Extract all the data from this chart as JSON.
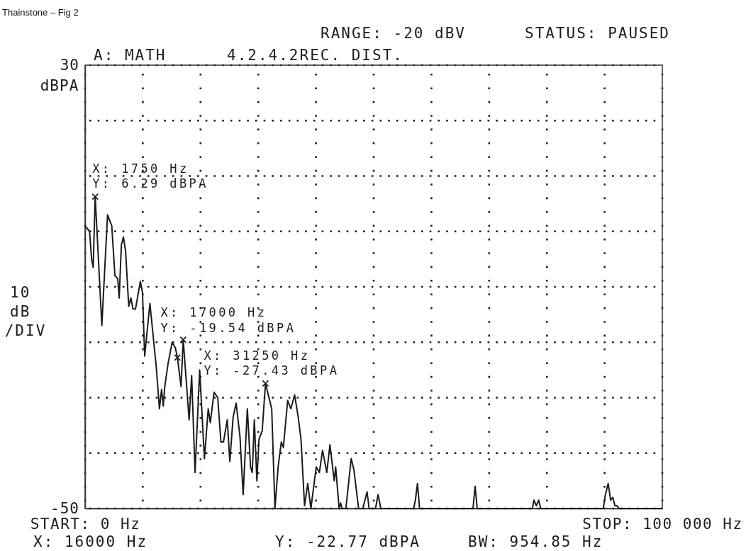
{
  "chart_data": {
    "type": "line",
    "title": "Thainstone – Fig 2",
    "ylabel": "dBPA",
    "annotations": [
      "RANGE: -20 dBV",
      "STATUS: PAUSED",
      "A: MATH",
      "4.2.4.2REC. DIST.",
      "10\ndB\n/DIV",
      {
        "text": "X: 1750 Hz\nY: 6.29 dBPA",
        "x": 1750,
        "y": 6.29
      },
      {
        "text": "X: 17000 Hz\nY: -19.54 dBPA",
        "x": 17000,
        "y": -19.54
      },
      {
        "text": "X: 31250 Hz\nY: -27.43 dBPA",
        "x": 31250,
        "y": -27.43
      },
      "BW: 954.85 Hz",
      "X: 16000 Hz\nY: -22.77 dBPA"
    ],
    "series": [
      {
        "color": "#1c1c1c",
        "x": [
          0,
          770,
          1130,
          1400,
          1750,
          2900,
          3890,
          4620,
          5170,
          5650,
          5910,
          6280,
          6640,
          7010,
          7560,
          7930,
          8290,
          8730,
          9580,
          9940,
          10320,
          11230,
          12330,
          12880,
          13250,
          13540,
          13800,
          14350,
          15080,
          15630,
          16000,
          16620,
          17000,
          18020,
          18460,
          19050,
          19850,
          20670,
          21330,
          21690,
          22350,
          22980,
          23530,
          23970,
          24630,
          25070,
          25650,
          26170,
          26830,
          27380,
          28110,
          28660,
          28960,
          29320,
          29760,
          30130,
          30680,
          31250,
          32330,
          32890,
          33440,
          33990,
          34350,
          35090,
          35640,
          36300,
          36920,
          37400,
          38020,
          38570,
          39120,
          40040,
          40590,
          41140,
          41870,
          42420,
          43160,
          43410,
          44010,
          44270,
          44510,
          45180,
          46100,
          46570,
          47380,
          48110,
          48850,
          49210,
          50310,
          50760,
          51230,
          56920,
          57220,
          57580,
          57950,
          67200,
          67570,
          67930,
          77480,
          77760,
          78170,
          78580,
          78940,
          89770,
          90140,
          90620,
          91060,
          91420,
          91790,
          92150,
          92520,
          100000
        ],
        "values": [
          1,
          0,
          -5,
          -6.5,
          6.29,
          -17,
          3,
          1,
          -8,
          -8.5,
          -12,
          -2.5,
          -1,
          -3.5,
          -13.5,
          -12,
          -14,
          -14,
          -9,
          -11,
          -22.5,
          -13,
          -24.5,
          -32,
          -28.5,
          -31.5,
          -28,
          -24,
          -20,
          -21,
          -22.77,
          -28,
          -19.54,
          -34,
          -26,
          -43.5,
          -25,
          -41,
          -32,
          -34.5,
          -29,
          -30,
          -38,
          -38,
          -34,
          -41.5,
          -33.5,
          -31,
          -37,
          -47.5,
          -32,
          -42.5,
          -43.5,
          -34,
          -45,
          -37.5,
          -36,
          -27.43,
          -32,
          -50,
          -42.5,
          -38,
          -39,
          -30.5,
          -32,
          -29.5,
          -33.5,
          -37.5,
          -49.5,
          -45.5,
          -50,
          -42.5,
          -43.5,
          -39.5,
          -43.5,
          -38.5,
          -45,
          -42.5,
          -50,
          -49,
          -50,
          -50,
          -41,
          -43,
          -50,
          -50,
          -47,
          -50,
          -50,
          -47.5,
          -50,
          -50,
          -48.5,
          -45.5,
          -50,
          -50,
          -46,
          -50,
          -50,
          -48.5,
          -49.5,
          -48.5,
          -50,
          -50,
          -47.5,
          -45.5,
          -48.5,
          -48,
          -49.5,
          -49.5,
          -50,
          -50
        ]
      },
      {
        "type": "scatter",
        "color": "#1c1c1c",
        "marker": "cross",
        "x": [
          1750,
          16000,
          17000,
          31250
        ],
        "values": [
          6.29,
          -22.77,
          -19.54,
          -27.43
        ]
      }
    ],
    "xlim": [
      0,
      100000
    ],
    "xticks": [
      {
        "value": 0,
        "label": "START: 0 Hz"
      },
      {
        "value": 10000,
        "label": null
      },
      {
        "value": 20000,
        "label": null
      },
      {
        "value": 30000,
        "label": null
      },
      {
        "value": 40000,
        "label": null
      },
      {
        "value": 50000,
        "label": null
      },
      {
        "value": 60000,
        "label": null
      },
      {
        "value": 70000,
        "label": null
      },
      {
        "value": 80000,
        "label": null
      },
      {
        "value": 90000,
        "label": null
      },
      {
        "value": 100000,
        "label": "STOP: 100 000 Hz"
      }
    ],
    "ylim": [
      -50,
      30
    ],
    "yticks": [
      30,
      {
        "value": 20,
        "label": null
      },
      {
        "value": 10,
        "label": null
      },
      {
        "value": 0,
        "label": null
      },
      {
        "value": -10,
        "label": null
      },
      {
        "value": -20,
        "label": null
      },
      {
        "value": -30,
        "label": null
      },
      {
        "value": -40,
        "label": null
      },
      -50
    ],
    "grid": true
  }
}
